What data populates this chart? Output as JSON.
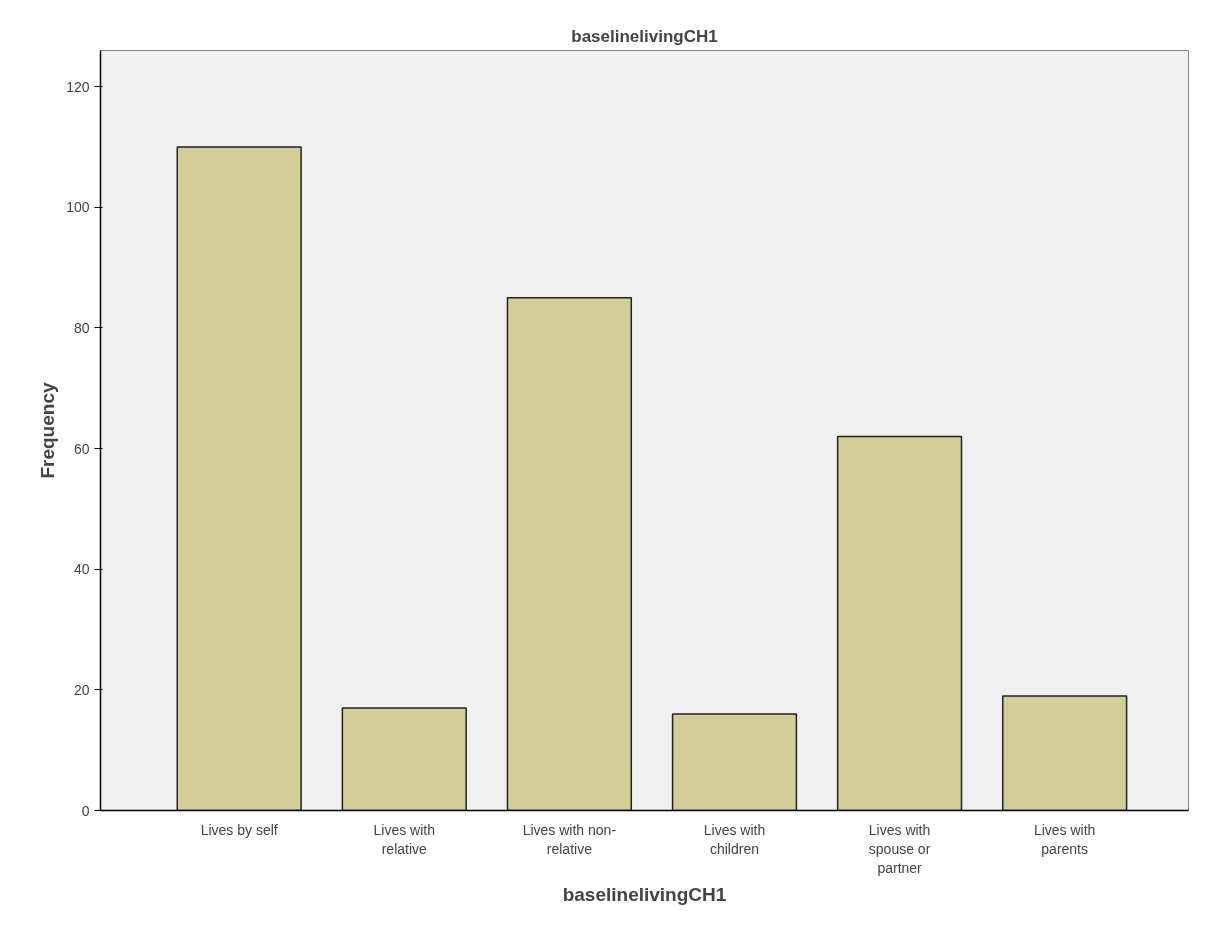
{
  "chart_data": {
    "type": "bar",
    "title": "baselinelivingCH1",
    "xlabel": "baselinelivingCH1",
    "ylabel": "Frequency",
    "categories": [
      "Lives by self",
      "Lives with relative",
      "Lives with non-relative",
      "Lives with children",
      "Lives with spouse or partner",
      "Lives with parents"
    ],
    "values": [
      110,
      17,
      85,
      16,
      62,
      19
    ],
    "color": "#d3ce97",
    "ylim": [
      0,
      126
    ],
    "yticks": [
      0,
      20,
      40,
      60,
      80,
      100,
      120
    ],
    "grid": false
  }
}
